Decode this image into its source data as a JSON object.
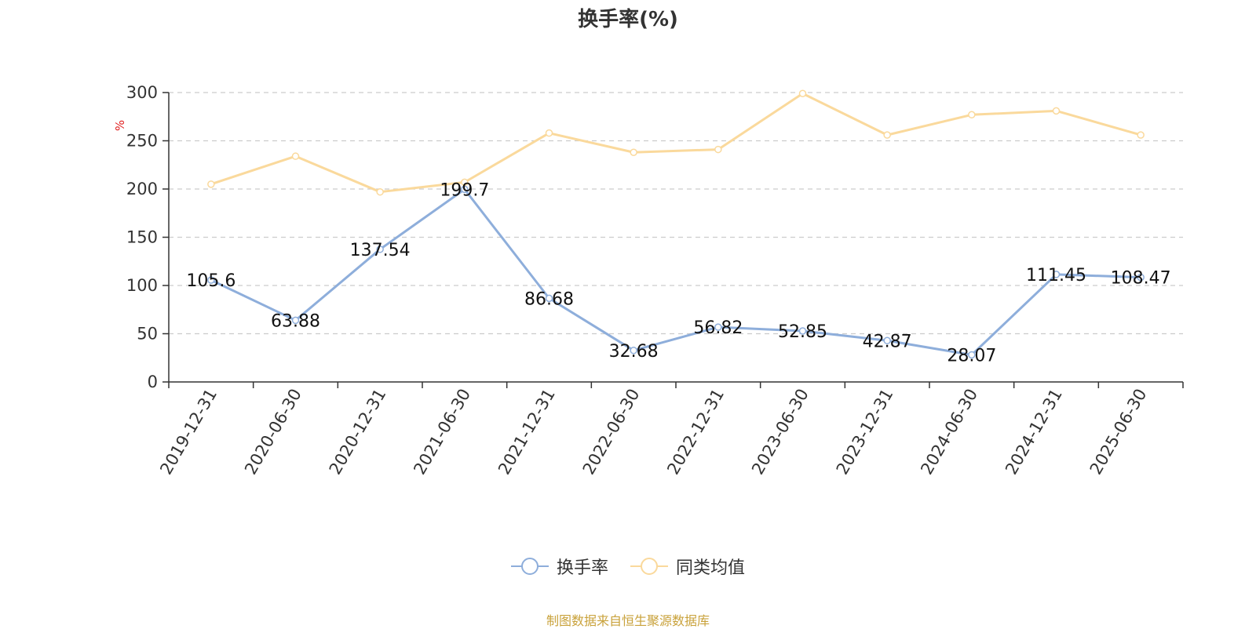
{
  "chart_data": {
    "type": "line",
    "title": "换手率(%)",
    "ylabel": "%",
    "categories": [
      "2019-12-31",
      "2020-06-30",
      "2020-12-31",
      "2021-06-30",
      "2021-12-31",
      "2022-06-30",
      "2022-12-31",
      "2023-06-30",
      "2023-12-31",
      "2024-06-30",
      "2024-12-31",
      "2025-06-30"
    ],
    "ylim": [
      0,
      300
    ],
    "yticks": [
      0,
      50,
      100,
      150,
      200,
      250,
      300
    ],
    "grid": true,
    "legend_position": "bottom",
    "series": [
      {
        "name": "换手率",
        "color": "#8eaedb",
        "show_labels": true,
        "values": [
          105.6,
          63.88,
          137.54,
          199.7,
          86.68,
          32.68,
          56.82,
          52.85,
          42.87,
          28.07,
          111.45,
          108.47
        ]
      },
      {
        "name": "同类均值",
        "color": "#fad99c",
        "show_labels": false,
        "values": [
          205,
          234,
          197,
          207,
          258,
          238,
          241,
          299,
          256,
          277,
          281,
          256
        ]
      }
    ]
  },
  "footer": {
    "source": "制图数据来自恒生聚源数据库"
  },
  "colors": {
    "axis": "#333333",
    "grid": "#cccccc",
    "unit_label": "#e02020",
    "source": "#c9a23b"
  }
}
